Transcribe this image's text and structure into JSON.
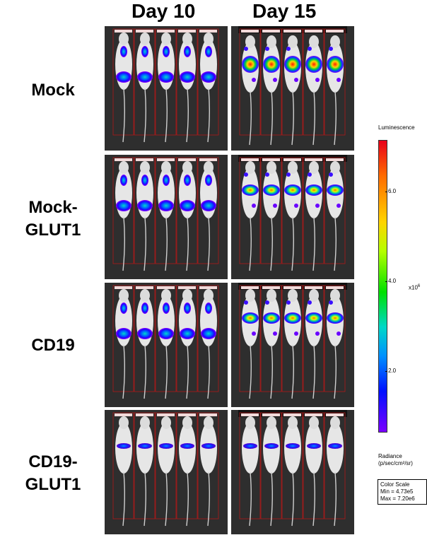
{
  "columns": [
    "Day 10",
    "Day 15"
  ],
  "rows": [
    "Mock",
    "Mock-\nGLUT1",
    "CD19",
    "CD19-\nGLUT1"
  ],
  "colorbar": {
    "title": "Luminescence",
    "ticks": [
      "6.0",
      "4.0",
      "2.0"
    ],
    "exponent_base": "x10",
    "exponent_power": "6",
    "radiance_line1": "Radiance",
    "radiance_line2": "(p/sec/cm²/sr)",
    "scale_title": "Color Scale",
    "scale_min": "Min = 4.73e5",
    "scale_max": "Max = 7.20e6",
    "gradient": [
      "#e8001a",
      "#ff6a00",
      "#ffd400",
      "#b5ff00",
      "#00e000",
      "#00d8c8",
      "#0090ff",
      "#0010ff",
      "#7a00ff"
    ]
  },
  "panels": [
    {
      "row": 0,
      "col": 0,
      "signal": "low",
      "mice": 5
    },
    {
      "row": 0,
      "col": 1,
      "signal": "high",
      "mice": 5
    },
    {
      "row": 1,
      "col": 0,
      "signal": "low",
      "mice": 5
    },
    {
      "row": 1,
      "col": 1,
      "signal": "medium",
      "mice": 5
    },
    {
      "row": 2,
      "col": 0,
      "signal": "low",
      "mice": 5
    },
    {
      "row": 2,
      "col": 1,
      "signal": "medium",
      "mice": 5
    },
    {
      "row": 3,
      "col": 0,
      "signal": "faint",
      "mice": 5
    },
    {
      "row": 3,
      "col": 1,
      "signal": "faint",
      "mice": 5
    }
  ]
}
